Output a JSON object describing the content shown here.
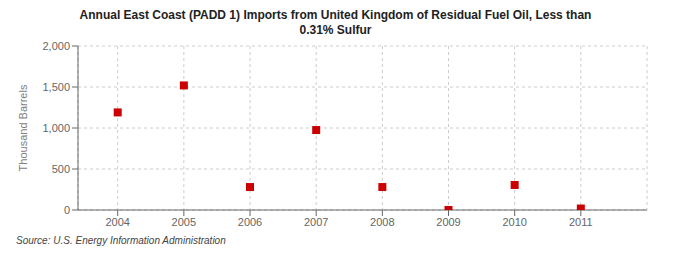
{
  "chart_data": {
    "type": "scatter",
    "title": "Annual East Coast (PADD 1) Imports from United Kingdom of Residual Fuel Oil, Less than\n0.31% Sulfur",
    "ylabel": "Thousand Barrels",
    "source": "Source: U.S. Energy Information Administration",
    "x": [
      2004,
      2005,
      2006,
      2007,
      2008,
      2009,
      2010,
      2011
    ],
    "values": [
      1190,
      1519,
      280,
      975,
      280,
      0,
      305,
      18
    ],
    "color": "#cc0000",
    "marker": "square",
    "xlim": [
      2003.4,
      2012.0
    ],
    "xticks": [
      2004,
      2005,
      2006,
      2007,
      2008,
      2009,
      2010,
      2011
    ],
    "ylim": [
      0,
      2000
    ],
    "yticks": [
      0,
      500,
      {
        "value": 1000,
        "label": "1,000"
      },
      {
        "value": 1500,
        "label": "1,500"
      },
      {
        "value": 2000,
        "label": "2,000"
      }
    ],
    "grid": true
  }
}
